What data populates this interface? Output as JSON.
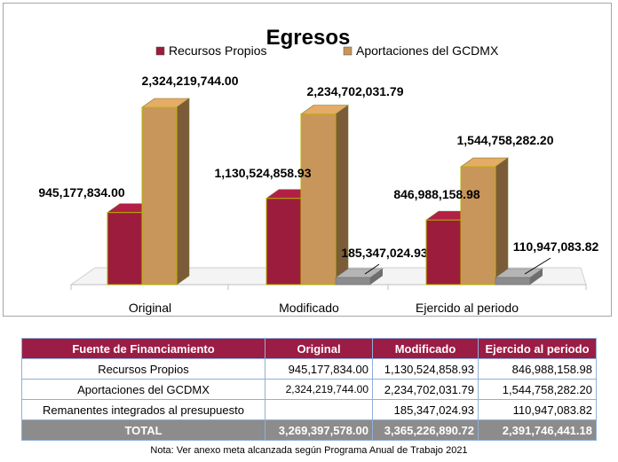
{
  "chart_data": {
    "type": "bar",
    "title": "Egresos",
    "categories": [
      "Original",
      "Modificado",
      "Ejercido al periodo"
    ],
    "series": [
      {
        "name": "Recursos Propios",
        "values": [
          945177834.0,
          1130524858.93,
          846988158.98
        ],
        "labels": [
          "945,177,834.00",
          "1,130,524,858.93",
          "846,988,158.98"
        ],
        "color": "#9b1c3c"
      },
      {
        "name": "Aportaciones del GCDMX",
        "values": [
          2324219744.0,
          2234702031.79,
          1544758282.2
        ],
        "labels": [
          "2,324,219,744.00",
          "2,234,702,031.79",
          "1,544,758,282.20"
        ],
        "color": "#c8955a"
      },
      {
        "name": "",
        "values": [
          0,
          185347024.93,
          110947083.82
        ],
        "labels": [
          "",
          "185,347,024.93",
          "110,947,083.82"
        ],
        "color": "#8c8c8c"
      }
    ],
    "legend_position": "top",
    "grid": false
  },
  "table": {
    "headers": [
      "Fuente de Financiamiento",
      "Original",
      "Modificado",
      "Ejercido al periodo"
    ],
    "rows": [
      [
        "Recursos Propios",
        "945,177,834.00",
        "1,130,524,858.93",
        "846,988,158.98"
      ],
      [
        "Aportaciones del GCDMX",
        "2,324,219,744.00",
        "2,234,702,031.79",
        "1,544,758,282.20"
      ],
      [
        "Remanentes integrados al presupuesto",
        "",
        "185,347,024.93",
        "110,947,083.82"
      ]
    ],
    "total": [
      "TOTAL",
      "3,269,397,578.00",
      "3,365,226,890.72",
      "2,391,746,441.18"
    ]
  },
  "note": "Nota: Ver anexo meta alcanzada según Programa Anual de Trabajo 2021"
}
